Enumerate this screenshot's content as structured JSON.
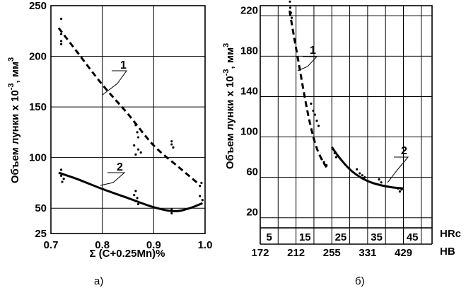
{
  "chart_data": [
    {
      "type": "line",
      "panel_label": "а)",
      "xlabel": "Σ (C+0.25Mn)%",
      "ylabel": "Объем лунки x 10",
      "ylabel_exp": "-3",
      "ylabel_unit": ", мм",
      "ylabel_unit_exp": "3",
      "xlim": [
        0.7,
        1.0
      ],
      "ylim": [
        25,
        250
      ],
      "x_ticks": [
        0.7,
        0.8,
        0.9,
        1.0
      ],
      "x_tick_labels": [
        "0.7",
        "0.8",
        "0.9",
        "1.0"
      ],
      "y_ticks": [
        25,
        50,
        100,
        150,
        200,
        250
      ],
      "y_tick_labels": [
        "25",
        "50",
        "100",
        "150",
        "200",
        "250"
      ],
      "grid": true,
      "series": [
        {
          "name": "1",
          "style": "dashed",
          "curve": [
            [
              0.715,
              228
            ],
            [
              0.75,
              205
            ],
            [
              0.8,
              172
            ],
            [
              0.85,
              143
            ],
            [
              0.9,
              112
            ],
            [
              0.95,
              90
            ],
            [
              0.985,
              75
            ]
          ],
          "points": [
            [
              0.72,
              237
            ],
            [
              0.72,
              222
            ],
            [
              0.72,
              215
            ],
            [
              0.72,
              212
            ],
            [
              0.865,
              132
            ],
            [
              0.868,
              125
            ],
            [
              0.87,
              120
            ],
            [
              0.862,
              112
            ],
            [
              0.87,
              108
            ],
            [
              0.875,
              105
            ],
            [
              0.865,
              103
            ],
            [
              0.935,
              116
            ],
            [
              0.935,
              113
            ],
            [
              0.938,
              110
            ],
            [
              0.993,
              75
            ],
            [
              0.99,
              72
            ]
          ]
        },
        {
          "name": "2",
          "style": "solid",
          "curve": [
            [
              0.715,
              85
            ],
            [
              0.75,
              79
            ],
            [
              0.8,
              69
            ],
            [
              0.85,
              60
            ],
            [
              0.9,
              51
            ],
            [
              0.94,
              47
            ],
            [
              0.97,
              50
            ],
            [
              0.995,
              55
            ]
          ],
          "points": [
            [
              0.72,
              88
            ],
            [
              0.72,
              82
            ],
            [
              0.725,
              79
            ],
            [
              0.722,
              76
            ],
            [
              0.865,
              67
            ],
            [
              0.862,
              63
            ],
            [
              0.868,
              60
            ],
            [
              0.865,
              57
            ],
            [
              0.87,
              54
            ],
            [
              0.935,
              49
            ],
            [
              0.94,
              47
            ],
            [
              0.935,
              45
            ],
            [
              0.99,
              62
            ],
            [
              0.995,
              58
            ]
          ]
        }
      ]
    },
    {
      "type": "line",
      "panel_label": "б)",
      "ylabel": "Объем лунки x 10",
      "ylabel_exp": "-3",
      "ylabel_unit": ", мм",
      "ylabel_unit_exp": "3",
      "ylim": [
        10,
        230
      ],
      "y_ticks": [
        20,
        60,
        100,
        140,
        180,
        220
      ],
      "y_tick_labels": [
        "20",
        "60",
        "100",
        "140",
        "180",
        "220"
      ],
      "grid": true,
      "hrc_label": "HRc",
      "hrc_ticks": [
        "5",
        "15",
        "25",
        "35",
        "45"
      ],
      "hb_label": "HB",
      "hb_ticks": [
        "172",
        "212",
        "255",
        "331",
        "429"
      ],
      "series": [
        {
          "name": "1",
          "style": "dashed",
          "curve": [
            [
              8.2,
              225
            ],
            [
              9.5,
              198
            ],
            [
              11,
              168
            ],
            [
              12.5,
              138
            ],
            [
              14,
              112
            ],
            [
              15.5,
              92
            ],
            [
              17,
              79
            ],
            [
              18.5,
              70
            ]
          ],
          "points": [
            [
              8.3,
              234
            ],
            [
              8.4,
              228
            ],
            [
              8.6,
              223
            ],
            [
              8.8,
              218
            ],
            [
              14.2,
              133
            ],
            [
              14.8,
              126
            ],
            [
              15.3,
              122
            ],
            [
              15.8,
              116
            ],
            [
              16.3,
              111
            ],
            [
              17.2,
              78
            ],
            [
              17.8,
              75
            ],
            [
              18.5,
              72
            ]
          ]
        },
        {
          "name": "2",
          "style": "solid",
          "curve": [
            [
              20,
              90
            ],
            [
              22,
              80
            ],
            [
              25,
              68
            ],
            [
              28,
              60
            ],
            [
              31,
              55
            ],
            [
              34,
              52
            ],
            [
              37,
              50
            ],
            [
              40,
              49
            ]
          ],
          "points": [
            [
              20.2,
              88
            ],
            [
              20.8,
              84
            ],
            [
              21.2,
              80
            ],
            [
              27,
              68
            ],
            [
              27.8,
              64
            ],
            [
              28.5,
              62
            ],
            [
              29.2,
              60
            ],
            [
              33.2,
              58
            ],
            [
              33.8,
              55
            ],
            [
              38.5,
              49
            ],
            [
              39,
              46
            ],
            [
              39.5,
              48
            ]
          ]
        }
      ]
    }
  ]
}
